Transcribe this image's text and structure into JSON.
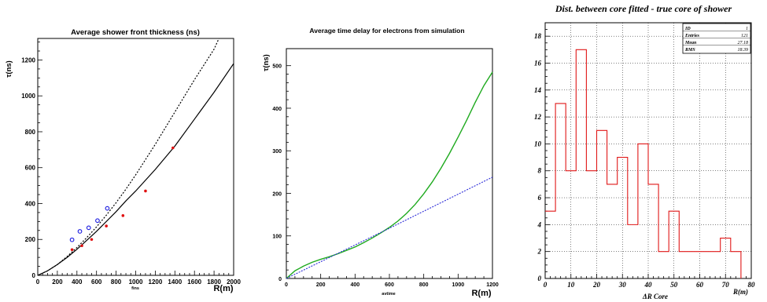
{
  "chart_data": [
    {
      "type": "line",
      "title": "Average shower front thickness (ns)",
      "ylabel": "τ(ns)",
      "xlabel": "R(m)",
      "footer": "fins",
      "xlim": [
        0,
        2000
      ],
      "ylim": [
        0,
        1320
      ],
      "xticks": [
        "0",
        "200",
        "400",
        "600",
        "800",
        "1000",
        "1200",
        "1400",
        "1600",
        "1800",
        "2000"
      ],
      "yticks": [
        "0",
        "200",
        "400",
        "600",
        "800",
        "1000",
        "1200"
      ],
      "series": [
        {
          "style": "solid",
          "color": "#000000",
          "x": [
            0,
            100,
            200,
            300,
            400,
            500,
            600,
            700,
            800,
            900,
            1000,
            1200,
            1400,
            1600,
            1800,
            2000
          ],
          "y": [
            0,
            25,
            60,
            100,
            145,
            195,
            245,
            300,
            355,
            415,
            470,
            590,
            720,
            870,
            1020,
            1180
          ]
        },
        {
          "style": "dotted",
          "color": "#000000",
          "x": [
            0,
            100,
            200,
            300,
            400,
            500,
            600,
            700,
            800,
            900,
            1000,
            1200,
            1400,
            1600,
            1800,
            1850
          ],
          "y": [
            0,
            25,
            60,
            105,
            155,
            210,
            270,
            335,
            405,
            480,
            560,
            730,
            910,
            1090,
            1260,
            1320
          ]
        }
      ],
      "points_red": {
        "x": [
          350,
          450,
          550,
          700,
          870,
          1100,
          1380
        ],
        "y": [
          143,
          165,
          200,
          275,
          333,
          470,
          710
        ]
      },
      "points_blue": {
        "x": [
          350,
          430,
          520,
          610,
          710
        ],
        "y": [
          198,
          245,
          265,
          305,
          373
        ]
      }
    },
    {
      "type": "line",
      "title": "Average time delay for electrons from simulation",
      "ylabel": "τ(ns)",
      "xlabel": "R(m)",
      "footer": "avtime",
      "xlim": [
        0,
        1200
      ],
      "ylim": [
        0,
        540
      ],
      "xticks": [
        "0",
        "200",
        "400",
        "600",
        "800",
        "1000",
        "1200"
      ],
      "yticks": [
        "0",
        "100",
        "200",
        "300",
        "400",
        "500"
      ],
      "series": [
        {
          "style": "solid",
          "color": "#1faa1f",
          "x": [
            0,
            50,
            100,
            150,
            200,
            250,
            300,
            350,
            400,
            450,
            500,
            550,
            600,
            650,
            700,
            750,
            800,
            850,
            900,
            950,
            1000,
            1050,
            1100,
            1150,
            1200
          ],
          "y": [
            0,
            18,
            29,
            38,
            45,
            51,
            58,
            66,
            74,
            84,
            95,
            107,
            120,
            135,
            153,
            174,
            199,
            227,
            259,
            294,
            332,
            372,
            414,
            453,
            485
          ]
        },
        {
          "style": "dashed",
          "color": "#2b2bd8",
          "x": [
            0,
            600,
            1200
          ],
          "y": [
            0,
            118,
            238
          ]
        }
      ]
    },
    {
      "type": "bar",
      "title": "Dist. between core fitted - true core of shower",
      "xlabel": "ΔR Core",
      "xunit": "R(m)",
      "xlim": [
        0,
        80
      ],
      "ylim": [
        0,
        19
      ],
      "xticks": [
        "0",
        "10",
        "20",
        "30",
        "40",
        "50",
        "60",
        "70",
        "80"
      ],
      "yticks": [
        "0",
        "2",
        "4",
        "6",
        "8",
        "10",
        "12",
        "14",
        "16",
        "18"
      ],
      "bin_edges": [
        0,
        4,
        8,
        12,
        16,
        20,
        24,
        28,
        32,
        36,
        40,
        44,
        48,
        52,
        56,
        60,
        64,
        68,
        72,
        76
      ],
      "values": [
        5,
        13,
        8,
        17,
        8,
        11,
        7,
        9,
        4,
        10,
        7,
        2,
        5,
        2,
        2,
        2,
        2,
        3,
        2
      ],
      "stats": [
        {
          "label": "ID",
          "value": "1"
        },
        {
          "label": "Entries",
          "value": "121"
        },
        {
          "label": "Mean",
          "value": "27.18"
        },
        {
          "label": "RMS",
          "value": "18.39"
        }
      ]
    }
  ]
}
